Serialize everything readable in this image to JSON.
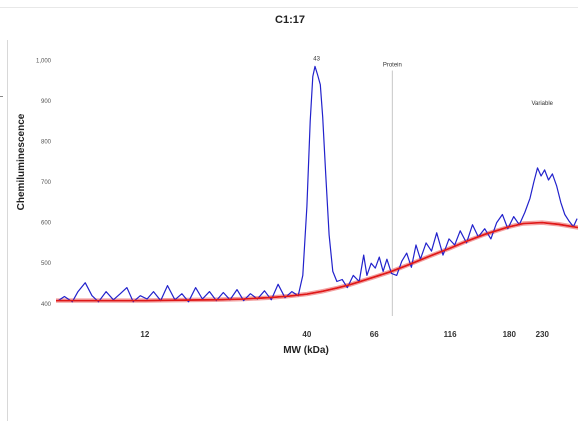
{
  "chart_data": {
    "type": "line",
    "title": "C1:17",
    "xlabel": "MW (kDa)",
    "ylabel": "Chemiluminescence",
    "x_scale": "log",
    "xlim": [
      6.2,
      300
    ],
    "ylim": [
      370,
      1050
    ],
    "y_ticks": [
      {
        "value": 400,
        "label": "400"
      },
      {
        "value": 500,
        "label": "500"
      },
      {
        "value": 600,
        "label": "600"
      },
      {
        "value": 700,
        "label": "700"
      },
      {
        "value": 800,
        "label": "800"
      },
      {
        "value": 900,
        "label": "900"
      },
      {
        "value": 1000,
        "label": "1,000"
      }
    ],
    "x_ticks": [
      {
        "value": 12,
        "label": "12"
      },
      {
        "value": 40,
        "label": "40"
      },
      {
        "value": 66,
        "label": "66"
      },
      {
        "value": 116,
        "label": "116"
      },
      {
        "value": 180,
        "label": "180"
      },
      {
        "value": 230,
        "label": "230"
      }
    ],
    "grid": false,
    "series": [
      {
        "role": "signal",
        "color": "#2222cc",
        "points": [
          [
            6.3,
            408
          ],
          [
            6.6,
            418
          ],
          [
            7.0,
            405
          ],
          [
            7.3,
            430
          ],
          [
            7.7,
            452
          ],
          [
            8.1,
            420
          ],
          [
            8.5,
            405
          ],
          [
            9.0,
            430
          ],
          [
            9.5,
            410
          ],
          [
            10.0,
            425
          ],
          [
            10.5,
            440
          ],
          [
            11.0,
            405
          ],
          [
            11.6,
            420
          ],
          [
            12.2,
            412
          ],
          [
            12.8,
            430
          ],
          [
            13.5,
            408
          ],
          [
            14.2,
            445
          ],
          [
            15.0,
            410
          ],
          [
            15.8,
            425
          ],
          [
            16.6,
            405
          ],
          [
            17.5,
            440
          ],
          [
            18.4,
            412
          ],
          [
            19.4,
            430
          ],
          [
            20.4,
            408
          ],
          [
            21.5,
            428
          ],
          [
            22.6,
            410
          ],
          [
            23.8,
            435
          ],
          [
            25.0,
            408
          ],
          [
            26.3,
            425
          ],
          [
            27.7,
            412
          ],
          [
            29.2,
            432
          ],
          [
            30.7,
            410
          ],
          [
            32.3,
            448
          ],
          [
            34.0,
            415
          ],
          [
            35.8,
            430
          ],
          [
            37.5,
            420
          ],
          [
            38.8,
            470
          ],
          [
            40.0,
            640
          ],
          [
            41.0,
            850
          ],
          [
            41.8,
            960
          ],
          [
            42.5,
            985
          ],
          [
            43.3,
            965
          ],
          [
            44.2,
            940
          ],
          [
            45.0,
            860
          ],
          [
            46.0,
            720
          ],
          [
            47.2,
            570
          ],
          [
            48.5,
            480
          ],
          [
            50.0,
            455
          ],
          [
            52.0,
            460
          ],
          [
            54.0,
            440
          ],
          [
            56.5,
            470
          ],
          [
            59.0,
            455
          ],
          [
            61.0,
            520
          ],
          [
            62.5,
            470
          ],
          [
            64.5,
            500
          ],
          [
            66.5,
            488
          ],
          [
            68.5,
            515
          ],
          [
            70.5,
            480
          ],
          [
            72.5,
            510
          ],
          [
            75.0,
            475
          ],
          [
            78.0,
            470
          ],
          [
            81.0,
            505
          ],
          [
            84.0,
            525
          ],
          [
            87.0,
            490
          ],
          [
            90.0,
            545
          ],
          [
            93.0,
            510
          ],
          [
            97.0,
            550
          ],
          [
            101.0,
            530
          ],
          [
            105.0,
            575
          ],
          [
            110.0,
            520
          ],
          [
            115.0,
            560
          ],
          [
            120.0,
            545
          ],
          [
            125.0,
            580
          ],
          [
            131.0,
            550
          ],
          [
            137.0,
            595
          ],
          [
            143.0,
            565
          ],
          [
            150.0,
            585
          ],
          [
            157.0,
            560
          ],
          [
            164.0,
            600
          ],
          [
            171.0,
            620
          ],
          [
            178.0,
            585
          ],
          [
            186.0,
            615
          ],
          [
            194.0,
            595
          ],
          [
            202.0,
            625
          ],
          [
            210.0,
            660
          ],
          [
            216.0,
            700
          ],
          [
            222.0,
            735
          ],
          [
            228.0,
            715
          ],
          [
            234.0,
            730
          ],
          [
            241.0,
            705
          ],
          [
            248.0,
            720
          ],
          [
            256.0,
            690
          ],
          [
            264.0,
            650
          ],
          [
            272.0,
            620
          ],
          [
            280.0,
            605
          ],
          [
            290.0,
            590
          ],
          [
            298.0,
            610
          ]
        ]
      },
      {
        "role": "fit",
        "color": "#e01818",
        "points": [
          [
            6.2,
            408
          ],
          [
            8.0,
            408
          ],
          [
            10.0,
            408
          ],
          [
            12.0,
            408
          ],
          [
            15.0,
            409
          ],
          [
            20.0,
            410
          ],
          [
            25.0,
            412
          ],
          [
            30.0,
            415
          ],
          [
            35.0,
            419
          ],
          [
            40.0,
            424
          ],
          [
            45.0,
            431
          ],
          [
            50.0,
            439
          ],
          [
            55.0,
            447
          ],
          [
            60.0,
            456
          ],
          [
            66.0,
            466
          ],
          [
            75.0,
            480
          ],
          [
            85.0,
            496
          ],
          [
            100.0,
            518
          ],
          [
            116.0,
            537
          ],
          [
            130.0,
            553
          ],
          [
            150.0,
            571
          ],
          [
            180.0,
            590
          ],
          [
            200.0,
            598
          ],
          [
            230.0,
            600
          ],
          [
            260.0,
            596
          ],
          [
            300.0,
            588
          ]
        ]
      }
    ],
    "annotations": [
      {
        "text": "43",
        "x": 43.0,
        "y": 1000
      },
      {
        "text": "Protein",
        "x": 75.5,
        "y": 985
      },
      {
        "text": "Variable",
        "x": 230,
        "y": 890
      }
    ],
    "vertical_lines": [
      75.5
    ]
  }
}
